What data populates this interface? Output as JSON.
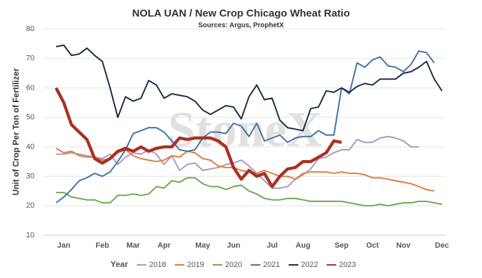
{
  "chart_data": {
    "type": "line",
    "title": "NOLA UAN / New Crop Chicago Wheat Ratio",
    "subtitle": "Sources: Argus, ProphetX",
    "y_label": "Unit of Crop Per Ton of Fertilizer",
    "watermark": "StoneX",
    "legend_title": "Year",
    "legend_position": "bottom",
    "grid": true,
    "categories": [
      null,
      null,
      "Jan",
      null,
      null,
      null,
      null,
      "Feb",
      null,
      null,
      null,
      "Mar",
      null,
      null,
      null,
      "Apr",
      null,
      null,
      null,
      null,
      "May",
      null,
      null,
      null,
      "Jun",
      null,
      null,
      null,
      null,
      "Jul",
      null,
      null,
      null,
      "Aug",
      null,
      null,
      null,
      null,
      "Sep",
      null,
      null,
      null,
      "Oct",
      null,
      null,
      null,
      "Nov",
      null,
      null,
      null,
      null,
      "Dec"
    ],
    "ylim": [
      10,
      80
    ],
    "yticks": [
      10,
      20,
      30,
      40,
      50,
      60,
      70,
      80
    ],
    "series": [
      {
        "name": "2018",
        "color": "#a898c0",
        "width": 2,
        "values": [
          null,
          37.5,
          37.5,
          38,
          37.5,
          37,
          36.5,
          36,
          37.5,
          34,
          36.5,
          38,
          37.5,
          39,
          37.5,
          34,
          37,
          32,
          34,
          34.5,
          32,
          32.5,
          33,
          34,
          34.5,
          35.5,
          33.5,
          31,
          28.5,
          26,
          26,
          26.5,
          29,
          30.5,
          32.5,
          36,
          36.5,
          38,
          39,
          39,
          42.5,
          41.5,
          41.5,
          43,
          43.5,
          43,
          42,
          40,
          40,
          null,
          null,
          null
        ]
      },
      {
        "name": "2019",
        "color": "#e07a3c",
        "width": 2,
        "values": [
          null,
          39.5,
          38,
          38.5,
          37,
          36.5,
          36.5,
          35.5,
          36,
          38,
          39,
          37,
          36,
          35.5,
          35,
          35.5,
          37,
          36.5,
          38.5,
          38,
          36,
          35.5,
          33.5,
          33,
          33,
          32,
          31.5,
          31,
          32,
          31,
          30,
          30,
          29,
          31,
          31.5,
          31.5,
          31.5,
          31,
          31.5,
          31,
          31,
          30.5,
          29.5,
          29.5,
          29,
          28.5,
          28,
          27.5,
          26.5,
          25.5,
          25,
          null
        ]
      },
      {
        "name": "2020",
        "color": "#6aab4a",
        "width": 2,
        "values": [
          null,
          24.5,
          24.5,
          23,
          22.5,
          22,
          22,
          21,
          21,
          23.5,
          23.5,
          24,
          23.5,
          24,
          26.5,
          26,
          28.5,
          28,
          29.5,
          29.5,
          27.5,
          26.5,
          26.5,
          25.5,
          26.5,
          27,
          25,
          24,
          22.5,
          22,
          22,
          22.5,
          22.5,
          22,
          21.5,
          21.5,
          21.5,
          21.5,
          21.5,
          21,
          20.5,
          20,
          20,
          20.5,
          20,
          20.5,
          21,
          21,
          21.5,
          21.5,
          21,
          20.5
        ]
      },
      {
        "name": "2021",
        "color": "#3f72a8",
        "width": 2,
        "values": [
          null,
          21,
          23,
          25.5,
          28.5,
          29.5,
          31,
          30,
          31.5,
          35,
          39,
          44.5,
          45.5,
          46.5,
          46.5,
          45,
          42,
          39,
          38.5,
          39,
          43,
          45,
          45,
          44.5,
          48,
          47,
          43.5,
          48,
          42,
          43,
          44,
          41.5,
          43,
          43.5,
          43.5,
          45.5,
          44,
          44,
          60,
          58,
          68.5,
          67,
          69.5,
          70.5,
          67.5,
          67,
          65.5,
          68,
          72.5,
          72,
          68.5,
          null
        ]
      },
      {
        "name": "2022",
        "color": "#1c2a44",
        "width": 2,
        "values": [
          null,
          74,
          74.5,
          71,
          71.5,
          73.5,
          71,
          69,
          60,
          50,
          57,
          55.5,
          56.5,
          62.5,
          61,
          56.5,
          58,
          57.5,
          57,
          55.5,
          52.5,
          51,
          52.5,
          54,
          53.5,
          49.5,
          57,
          61,
          56,
          56.5,
          49,
          46.5,
          46,
          45.5,
          53,
          53.5,
          59,
          58.5,
          60,
          58.5,
          60.5,
          61.5,
          61,
          63,
          63,
          63,
          65,
          65.5,
          67,
          69,
          63,
          59
        ]
      },
      {
        "name": "2023",
        "color": "#a83224",
        "width": 4.5,
        "values": [
          null,
          60,
          55,
          47.5,
          45,
          42.5,
          36,
          34.5,
          36,
          38.5,
          39.5,
          38.5,
          40,
          38.5,
          39.5,
          40,
          40,
          43,
          42.5,
          43,
          43,
          43,
          42,
          40,
          33,
          29,
          32,
          30,
          31,
          26.5,
          30,
          32.5,
          33,
          35,
          35,
          36.5,
          38,
          42,
          41.5,
          null,
          null,
          null,
          null,
          null,
          null,
          null,
          null,
          null,
          null,
          null,
          null,
          null
        ]
      }
    ]
  }
}
